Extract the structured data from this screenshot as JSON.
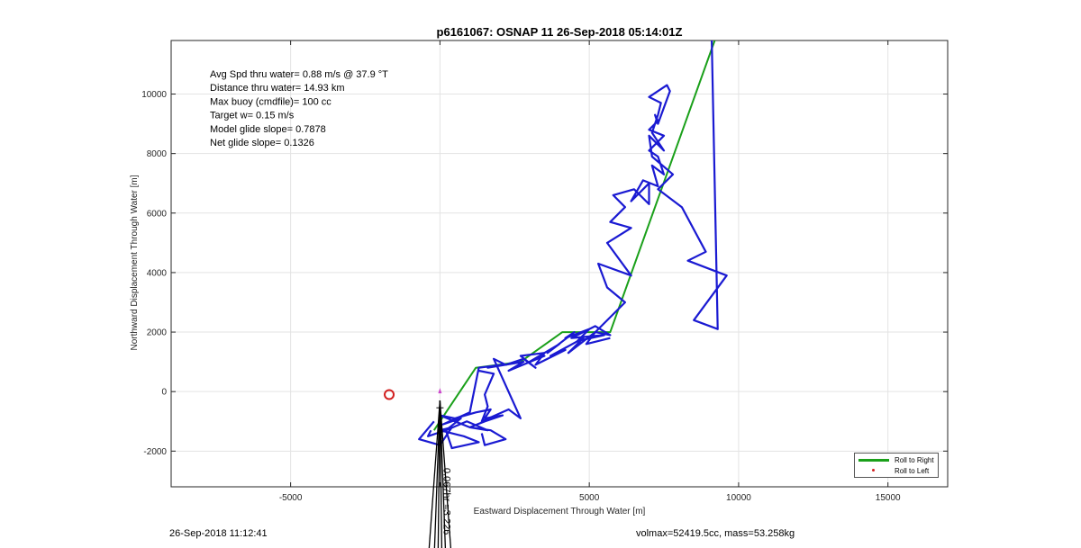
{
  "chart_data": {
    "type": "line",
    "title": "p6161067: OSNAP 11 26-Sep-2018 05:14:01Z",
    "xlabel": "Eastward Displacement Through Water [m]",
    "ylabel": "Northward Displacement Through Water [m]",
    "xlim": [
      -9000,
      17000
    ],
    "ylim": [
      -3200,
      11800
    ],
    "xticks": [
      -5000,
      0,
      5000,
      10000,
      15000
    ],
    "xtick_labels": [
      "-5000",
      "",
      "5000",
      "10000",
      "15000"
    ],
    "yticks": [
      -2000,
      0,
      2000,
      4000,
      6000,
      8000,
      10000
    ],
    "ytick_labels": [
      "-2000",
      "0",
      "2000",
      "4000",
      "6000",
      "8000",
      "10000"
    ],
    "grid": true,
    "annotations": [
      "Avg Spd thru water=  0.88 m/s @  37.9 °T",
      "Distance thru water= 14.93 km",
      "Max buoy (cmdfile)= 100 cc",
      "Target w= 0.15 m/s",
      "Model glide slope= 0.7878",
      "Net glide slope= 0.1326"
    ],
    "current_label": "0.067hr =3.226",
    "legend": {
      "position": "bottom-right",
      "entries": [
        {
          "label": "Roll to Right",
          "color": "#1aa01a"
        },
        {
          "label": "Roll to Left",
          "color": "#d21f1f"
        }
      ]
    },
    "series": [
      {
        "name": "Roll to Right",
        "color": "#1aa01a",
        "x": [
          -200,
          1200,
          2700,
          4100,
          5700,
          9200
        ],
        "y": [
          -1300,
          800,
          1000,
          2000,
          2000,
          11800
        ]
      },
      {
        "color": "#1a1ad2",
        "x": [
          -300,
          -400,
          200,
          700,
          100,
          1000,
          1300,
          2100,
          1600,
          2800,
          2300,
          3500,
          3000,
          4000,
          3600,
          4500,
          4200,
          5000,
          4600,
          5500,
          4400,
          5200,
          5700,
          5200,
          6200,
          5600,
          5300,
          6400,
          5600,
          6400,
          5700,
          6200,
          5800,
          6500,
          7000,
          7000,
          6400,
          6800,
          7300,
          7100,
          7500,
          7300,
          7000,
          7500,
          7000,
          7300,
          7200,
          7300,
          7700,
          7600,
          7000,
          7400,
          7300,
          7100,
          7500,
          7000,
          7100,
          7800,
          7300,
          8100,
          8900,
          8300,
          9600,
          8500,
          9300,
          9100
        ],
        "y": [
          -1300,
          -1500,
          -1300,
          -900,
          -1100,
          -700,
          800,
          900,
          800,
          1000,
          700,
          1200,
          1000,
          1600,
          1300,
          2000,
          1800,
          2100,
          1700,
          1900,
          1800,
          2200,
          1900,
          2000,
          3000,
          3500,
          4300,
          3900,
          5000,
          5500,
          5700,
          6200,
          6600,
          6800,
          6300,
          7000,
          6400,
          7100,
          6900,
          7600,
          7300,
          7900,
          8100,
          8600,
          8800,
          9100,
          9300,
          9000,
          10100,
          10300,
          9900,
          9700,
          9300,
          8700,
          8100,
          8600,
          7900,
          7300,
          6800,
          6200,
          4700,
          4400,
          3900,
          2400,
          2100,
          11800
        ]
      },
      {
        "color": "#1a1ad2",
        "x": [
          -200,
          -700,
          0,
          400,
          0,
          800,
          1300,
          400,
          200,
          900,
          1600,
          1000,
          0,
          500,
          1200,
          1700,
          1500,
          2100,
          1500,
          1000,
          1700,
          2200,
          1500,
          1400
        ],
        "y": [
          -1000,
          -1600,
          -1800,
          -1200,
          -1300,
          -1500,
          -1700,
          -1900,
          -1300,
          -1000,
          -1300,
          -1200,
          -800,
          -900,
          -700,
          -600,
          -900,
          -800,
          -1000,
          -1200,
          -1300,
          -1600,
          -1800,
          -1400
        ]
      },
      {
        "color": "#1a1ad2",
        "x": [
          1300,
          1800,
          1500,
          1600,
          1400,
          2300,
          2700,
          1800,
          2200,
          2800,
          3200,
          2700,
          3500,
          3200,
          4200,
          3700,
          4800,
          4300,
          5200,
          4900,
          5700
        ],
        "y": [
          700,
          600,
          -100,
          -500,
          -1000,
          -600,
          -900,
          1100,
          900,
          1100,
          800,
          1200,
          1300,
          900,
          1400,
          1200,
          1800,
          1300,
          2000,
          1600,
          1800
        ]
      }
    ],
    "markers": [
      {
        "label": "start",
        "x": -1700,
        "y": -100,
        "color": "#d21f1f"
      },
      {
        "label": "current",
        "x": 0,
        "y": 0,
        "color": "#d21f1f"
      }
    ],
    "sinker": {
      "x": [
        0
      ],
      "y": [
        0
      ],
      "color": "#000000"
    },
    "footer_left": "26-Sep-2018 11:12:41",
    "footer_right": "volmax=52419.5cc, mass=53.258kg"
  }
}
